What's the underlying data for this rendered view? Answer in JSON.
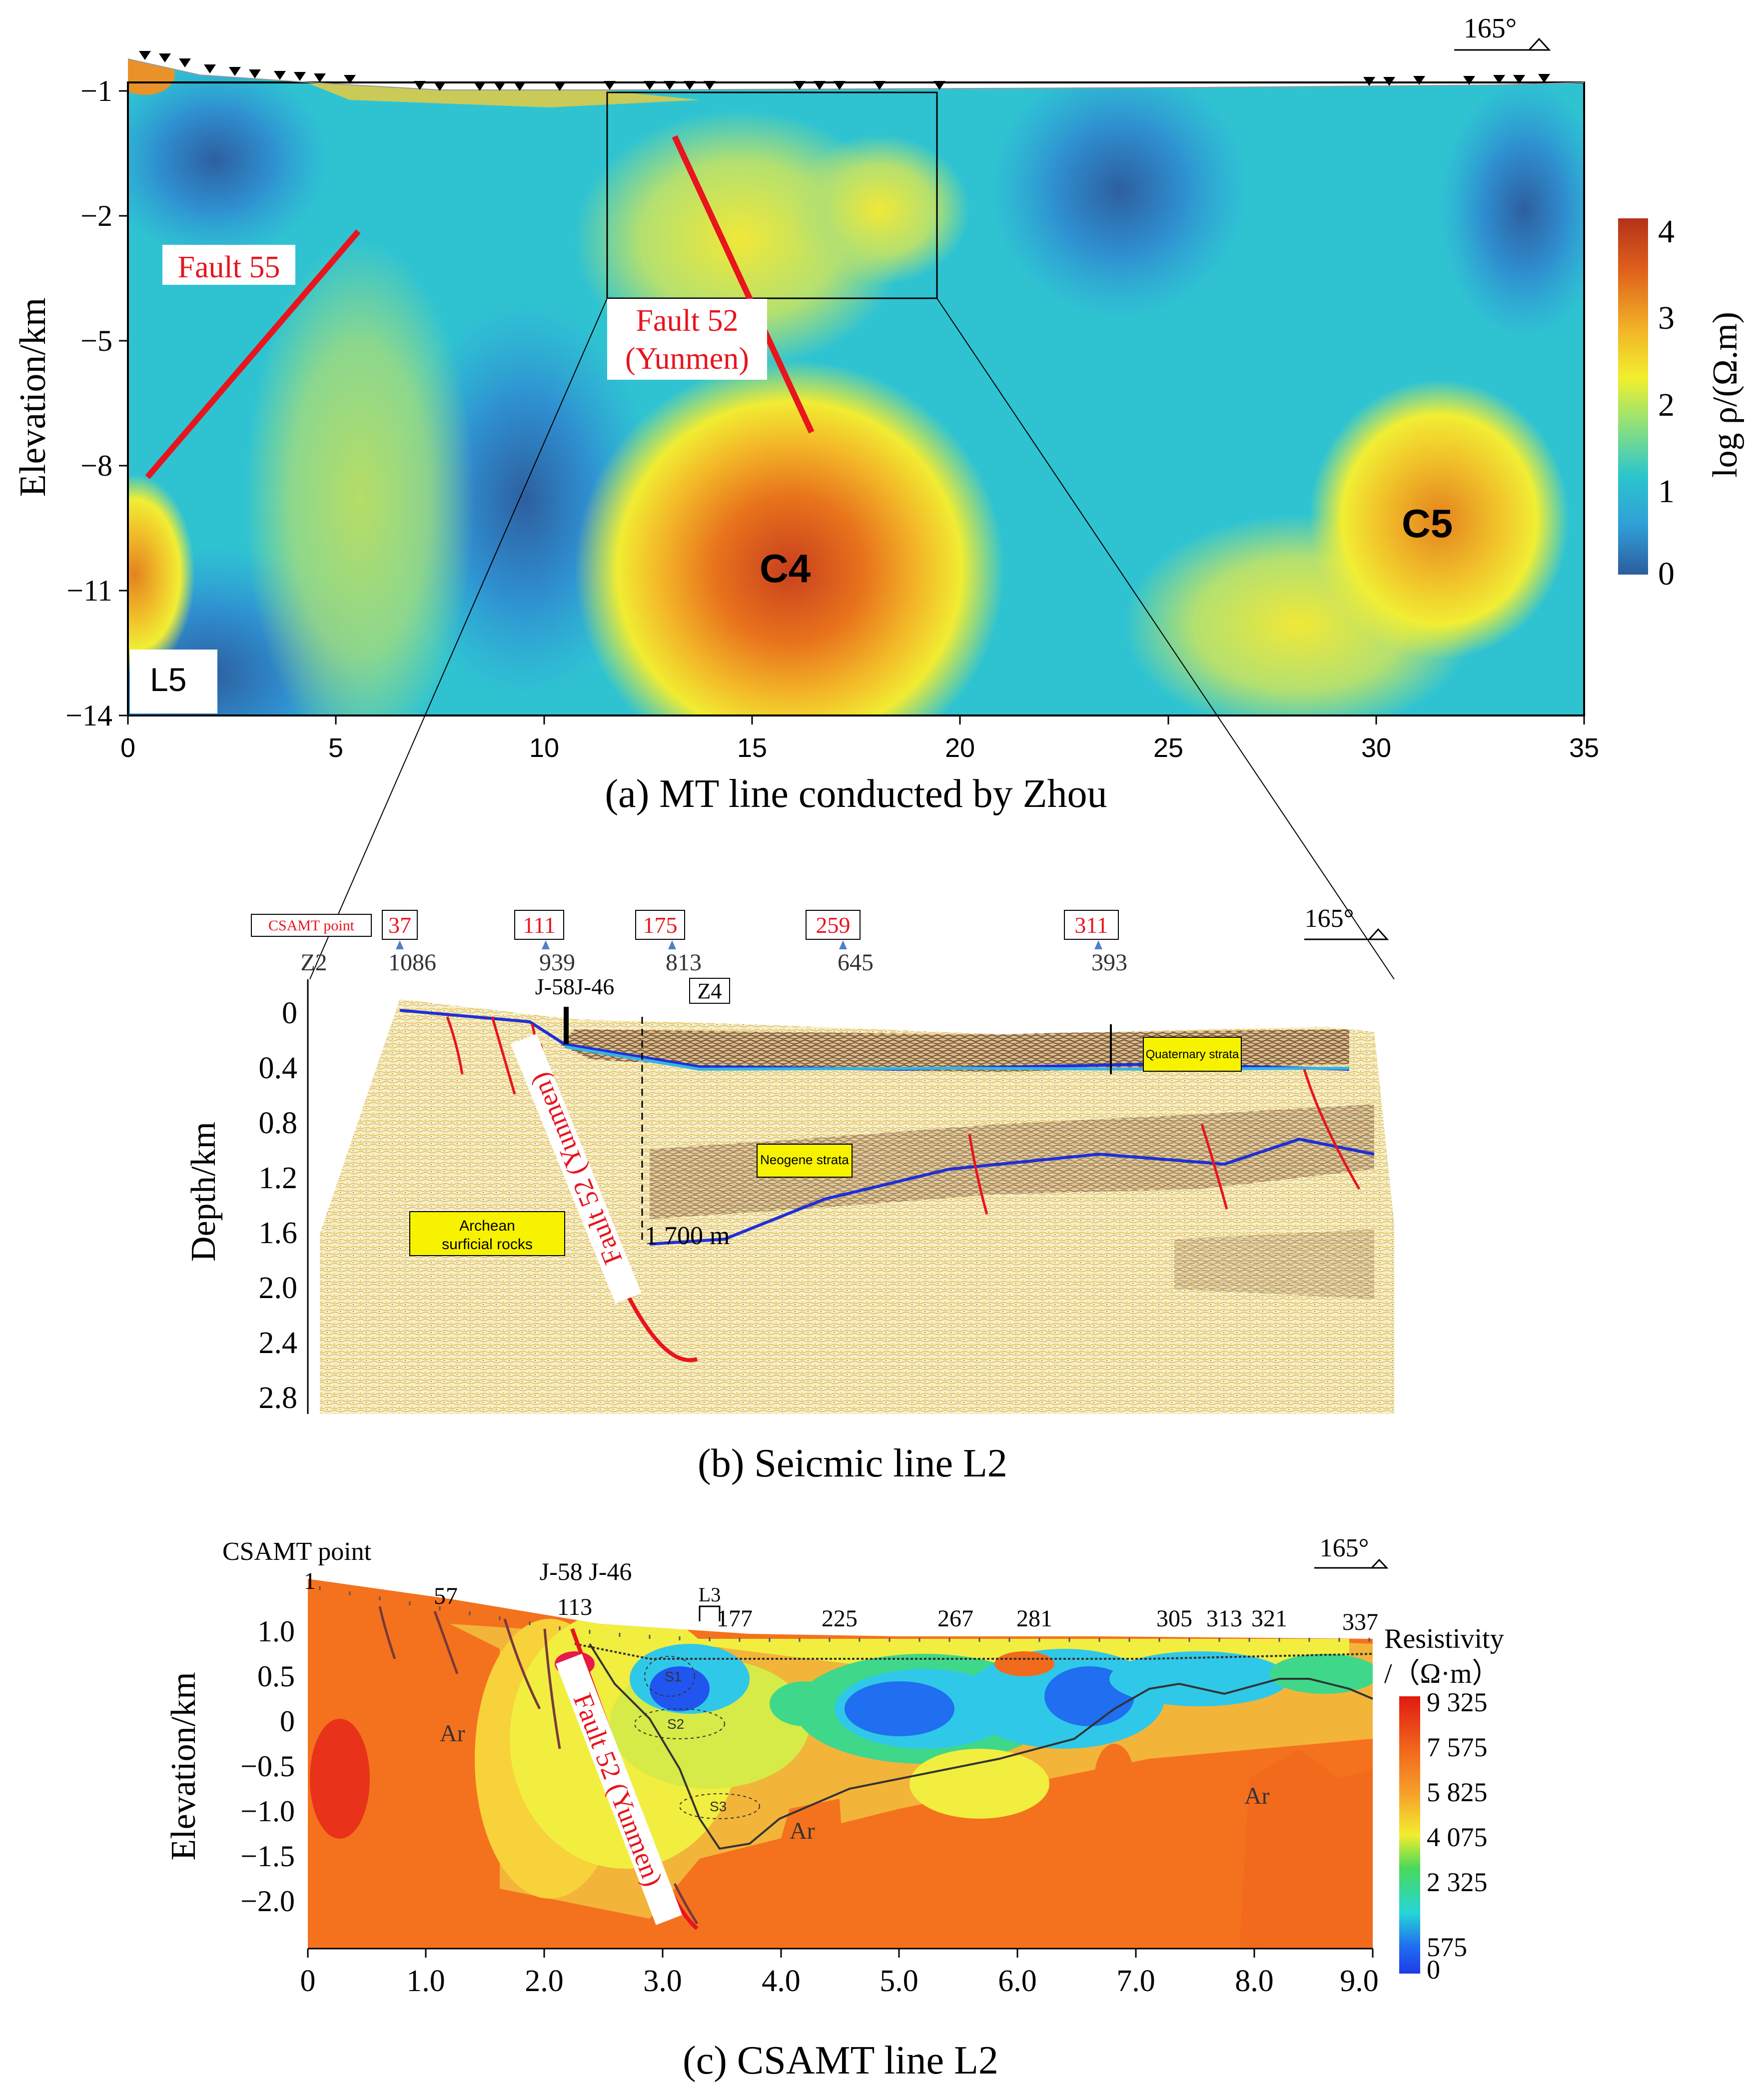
{
  "panel_a": {
    "caption": "(a) MT line conducted by Zhou",
    "azimuth": "165°",
    "ylabel": "Elevation/km",
    "y_ticks": [
      "−1",
      "−2",
      "−5",
      "−8",
      "−11",
      "−14"
    ],
    "x_ticks": [
      "0",
      "5",
      "10",
      "15",
      "20",
      "25",
      "30",
      "35"
    ],
    "line_label": "L5",
    "anomalies": [
      "C4",
      "C5"
    ],
    "fault_55": "Fault 55",
    "fault_52_l1": "Fault 52",
    "fault_52_l2": "(Yunmen)",
    "colorbar_label": "log ρ/(Ω.m)",
    "colorbar_ticks": [
      "4",
      "3",
      "2",
      "1",
      "0"
    ]
  },
  "panel_b": {
    "caption": "(b) Seicmic line L2",
    "azimuth": "165°",
    "csamt_label": "CSAMT point",
    "points": [
      "37",
      "111",
      "175",
      "259",
      "311"
    ],
    "cdps": [
      "Z2",
      "1086",
      "939",
      "813",
      "645",
      "393"
    ],
    "wells": "J-58J-46",
    "z4": "Z4",
    "ylabel": "Depth/km",
    "y_ticks": [
      "0",
      "0.4",
      "0.8",
      "1.2",
      "1.6",
      "2.0",
      "2.4",
      "2.8"
    ],
    "quaternary": "Quaternary strata",
    "neogene": "Neogene strata",
    "archean_l1": "Archean",
    "archean_l2": "surficial rocks",
    "depth_marker": "1 700 m",
    "fault": "Fault 52 (Yunmen)"
  },
  "panel_c": {
    "caption": "(c) CSAMT line L2",
    "azimuth": "165°",
    "csamt_label": "CSAMT point",
    "points": [
      "1",
      "57",
      "113",
      "177",
      "225",
      "267",
      "281",
      "305",
      "313",
      "321",
      "337"
    ],
    "wells": "J-58 J-46",
    "l3": "L3",
    "ylabel": "Elevation/km",
    "y_ticks": [
      "1.0",
      "0.5",
      "0",
      "−0.5",
      "−1.0",
      "−1.5",
      "−2.0"
    ],
    "x_ticks": [
      "0",
      "1.0",
      "2.0",
      "3.0",
      "4.0",
      "5.0",
      "6.0",
      "7.0",
      "8.0",
      "9.0"
    ],
    "units": [
      "Ar",
      "Ar",
      "Ar"
    ],
    "sub_anomalies": [
      "S1",
      "S2",
      "S3"
    ],
    "fault": "Fault 52 (Yunmen)",
    "colorbar_title_l1": "Resistivity",
    "colorbar_title_l2": "/（Ω·m）",
    "colorbar_ticks": [
      "9 325",
      "7 575",
      "5 825",
      "4 075",
      "2 325",
      "575",
      "0"
    ]
  },
  "colors": {
    "fault_red": "#e8141e",
    "horizon_blue": "#1f2fd6",
    "quaternary_base": "#39b3e0",
    "label_yellow": "#f7f200"
  }
}
